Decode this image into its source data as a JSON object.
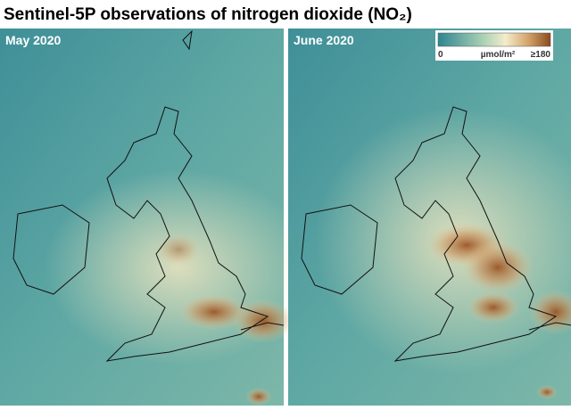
{
  "header": {
    "title": "Sentinel-5P observations of nitrogen dioxide (NO₂)"
  },
  "panels": [
    {
      "label": "May 2020"
    },
    {
      "label": "June 2020"
    }
  ],
  "colorbar": {
    "min_label": "0",
    "unit_label": "µmol/m²",
    "max_label": "≥180"
  }
}
